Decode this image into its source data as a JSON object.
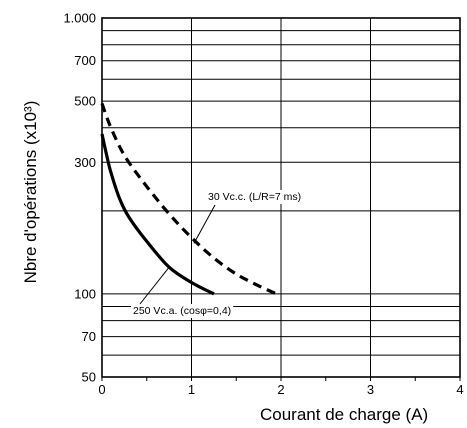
{
  "chart_data": {
    "type": "line",
    "xlabel": "Courant de charge (A)",
    "ylabel": "Nbre d'opérations (x10³)",
    "xlim": [
      0,
      4
    ],
    "ylim": [
      50,
      1000
    ],
    "y_scale": "log",
    "grid": true,
    "x_ticks": [
      0,
      1,
      2,
      3,
      4
    ],
    "x_tick_labels": [
      "0",
      "1",
      "2",
      "3",
      "4"
    ],
    "y_ticks": [
      50,
      70,
      100,
      300,
      500,
      700,
      1000
    ],
    "y_tick_labels": [
      "50",
      "70",
      "100",
      "300",
      "500",
      "700",
      "1.000"
    ],
    "y_gridlines": [
      50,
      60,
      70,
      80,
      90,
      100,
      200,
      300,
      400,
      500,
      600,
      700,
      800,
      900,
      1000
    ],
    "series": [
      {
        "name": "30 Vc.c. (L/R=7 ms)",
        "style": "dashed",
        "color": "#000000",
        "x": [
          0,
          0.05,
          0.1,
          0.2,
          0.3,
          0.5,
          0.75,
          1.0,
          1.25,
          1.5,
          1.75,
          1.95
        ],
        "y": [
          490,
          440,
          400,
          340,
          300,
          245,
          195,
          160,
          135,
          118,
          107,
          100
        ]
      },
      {
        "name": "250 Vc.a. (cosφ=0,4)",
        "style": "solid",
        "color": "#000000",
        "x": [
          0,
          0.05,
          0.1,
          0.2,
          0.3,
          0.5,
          0.75,
          1.0,
          1.25
        ],
        "y": [
          380,
          320,
          275,
          220,
          190,
          155,
          125,
          110,
          100
        ]
      }
    ],
    "annotations": [
      {
        "text": "30 Vc.c. (L/R=7 ms)",
        "series": 0,
        "point_x": 1.05,
        "point_y": 155
      },
      {
        "text": "250 Vc.a. (cosφ=0,4)",
        "series": 1,
        "point_x": 0.75,
        "point_y": 125
      }
    ]
  }
}
